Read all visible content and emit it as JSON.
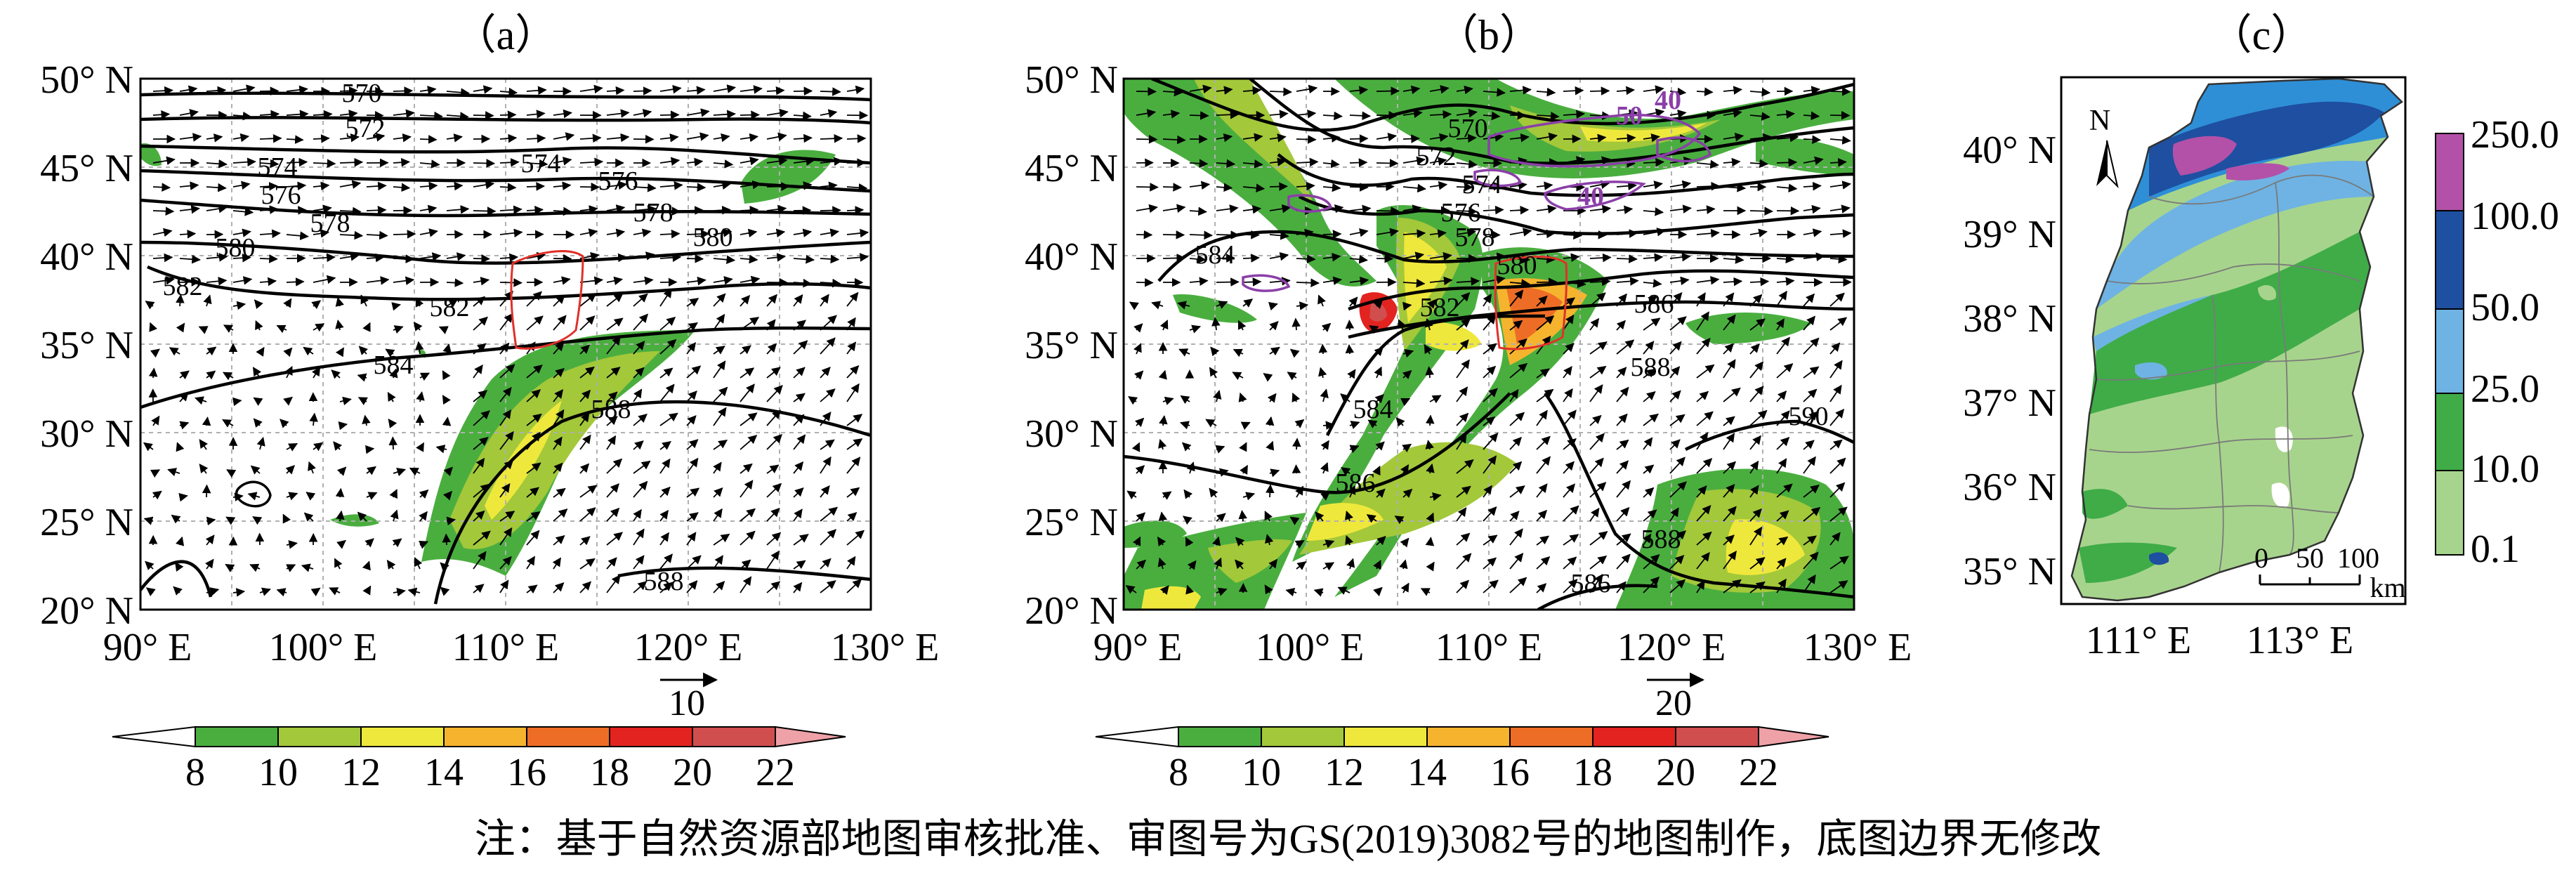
{
  "panels": [
    {
      "id": "a",
      "label": "（a）",
      "lat_ticks": [
        "50° N",
        "45° N",
        "40° N",
        "35° N",
        "30° N",
        "25° N",
        "20° N"
      ],
      "lon_ticks": [
        "90° E",
        "100° E",
        "110° E",
        "120° E",
        "130° E"
      ],
      "contour_labels": [
        "570",
        "572",
        "574",
        "576",
        "578",
        "580",
        "582",
        "584",
        "588",
        "588"
      ],
      "ref_vector": "10"
    },
    {
      "id": "b",
      "label": "（b）",
      "lat_ticks": [
        "50° N",
        "45° N",
        "40° N",
        "35° N",
        "30° N",
        "25° N",
        "20° N"
      ],
      "lon_ticks": [
        "90° E",
        "100° E",
        "110° E",
        "120° E",
        "130° E"
      ],
      "contour_labels": [
        "570",
        "572",
        "574",
        "576",
        "578",
        "580",
        "582",
        "584",
        "586",
        "586",
        "588",
        "588",
        "586",
        "590"
      ],
      "purple_labels": [
        "50",
        "40",
        "40"
      ],
      "ref_vector": "20"
    },
    {
      "id": "c",
      "label": "（c）",
      "lat_ticks": [
        "40° N",
        "39° N",
        "38° N",
        "37° N",
        "36° N",
        "35° N"
      ],
      "lon_ticks": [
        "111° E",
        "113° E"
      ],
      "north": "N",
      "scale_ticks": [
        "0",
        "50",
        "100"
      ],
      "scale_unit": "km",
      "legend": [
        "250.0",
        "100.0",
        "50.0",
        "25.0",
        "10.0",
        "0.1"
      ]
    }
  ],
  "colorbar_ticks": [
    "8",
    "10",
    "12",
    "14",
    "16",
    "18",
    "20",
    "22"
  ],
  "colors": {
    "c8": "#4aae3f",
    "c10": "#a3c83a",
    "c12": "#efe83c",
    "c14": "#f6b42e",
    "c16": "#ee6d26",
    "c18": "#e2231f",
    "c20": "#d04e4e",
    "c22": "#efa1a8",
    "rain_250": "#b351a8",
    "rain_100": "#1e4fa0",
    "rain_50": "#2e8fd7",
    "rain_25": "#6eb3e4",
    "rain_10": "#3fac48",
    "rain_01": "#a7d48c",
    "purple": "#8b3fa8",
    "red_outline": "#e0312a"
  },
  "footnote": "注：基于自然资源部地图审核批准、审图号为GS(2019)3082号的地图制作，底图边界无修改"
}
